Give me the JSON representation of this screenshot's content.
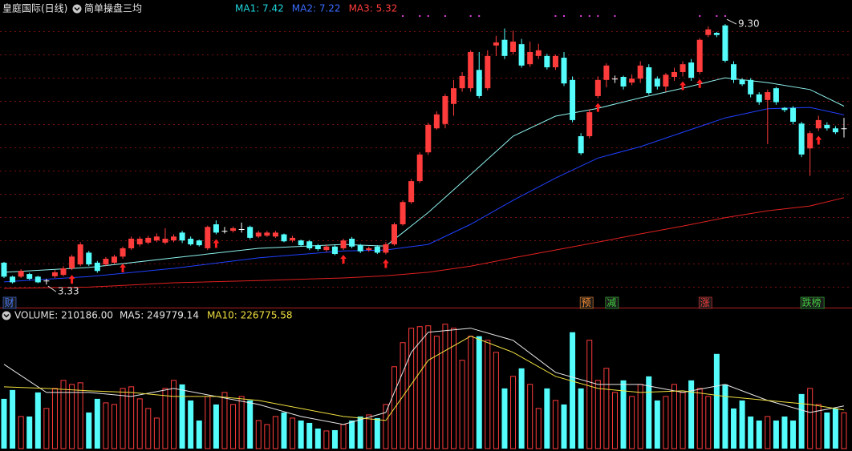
{
  "chart_data": [
    {
      "type": "candlestick",
      "title": "皇庭国际(日线)",
      "subtitle": "简单操盘三均",
      "open": [
        3.83,
        3.51,
        3.51,
        3.57,
        3.51,
        3.42,
        3.52,
        3.55,
        3.7,
        3.79,
        4.06,
        3.83,
        3.79,
        3.83,
        3.97,
        4.16,
        4.25,
        4.29,
        4.34,
        4.29,
        4.34,
        4.52,
        4.38,
        4.34,
        4.16,
        4.71,
        4.56,
        4.56,
        4.6,
        4.65,
        4.43,
        4.45,
        4.43,
        4.48,
        4.34,
        4.34,
        4.32,
        4.23,
        4.12,
        4.2,
        4.16,
        4.38,
        4.23,
        4.12,
        4.2,
        4.06,
        4.25,
        4.71,
        5.22,
        5.7,
        6.36,
        6.91,
        7.01,
        7.47,
        7.83,
        7.83,
        8.25,
        7.83,
        8.81,
        8.94,
        8.66,
        8.84,
        8.38,
        8.57,
        8.57,
        8.31,
        8.53,
        8.02,
        6.73,
        6.73,
        7.65,
        8.02,
        8.05,
        8.09,
        7.96,
        8.05,
        8.31,
        8.05,
        7.87,
        8.09,
        8.2,
        8.42,
        8.2,
        9.05,
        9.1,
        9.27,
        8.38,
        8.02,
        8.02,
        7.69,
        7.56,
        7.83,
        7.38,
        7.38,
        7.02,
        6.45,
        6.91,
        6.99,
        6.91,
        6.91
      ],
      "high": [
        3.85,
        3.53,
        3.68,
        3.6,
        3.53,
        3.46,
        3.66,
        3.75,
        4.01,
        4.3,
        4.1,
        3.87,
        3.96,
        4.01,
        4.2,
        4.43,
        4.43,
        4.45,
        4.5,
        4.62,
        4.48,
        4.56,
        4.43,
        4.36,
        4.68,
        4.8,
        4.65,
        4.66,
        4.75,
        4.68,
        4.56,
        4.56,
        4.56,
        4.5,
        4.45,
        4.36,
        4.35,
        4.26,
        4.25,
        4.25,
        4.38,
        4.42,
        4.26,
        4.2,
        4.23,
        4.3,
        4.75,
        5.26,
        5.75,
        6.36,
        7.04,
        7.3,
        7.7,
        8.02,
        8.2,
        8.7,
        8.66,
        8.7,
        9.03,
        9.2,
        9.15,
        8.96,
        8.9,
        8.85,
        8.62,
        8.6,
        8.66,
        8.1,
        6.8,
        7.35,
        8.1,
        8.4,
        8.12,
        8.12,
        8.15,
        8.45,
        8.38,
        8.1,
        8.18,
        8.3,
        8.45,
        8.5,
        8.98,
        9.25,
        9.12,
        9.3,
        8.45,
        8.06,
        8.06,
        7.74,
        7.8,
        7.86,
        7.4,
        7.42,
        7.06,
        6.85,
        7.2,
        7.05,
        6.96,
        7.15
      ],
      "low": [
        3.48,
        3.35,
        3.48,
        3.43,
        3.36,
        3.33,
        3.48,
        3.52,
        3.66,
        3.75,
        3.75,
        3.6,
        3.75,
        3.8,
        3.92,
        4.12,
        4.2,
        4.25,
        4.3,
        4.25,
        4.3,
        4.28,
        4.22,
        4.2,
        4.12,
        4.48,
        4.5,
        4.52,
        4.52,
        4.36,
        4.4,
        4.42,
        4.4,
        4.3,
        4.3,
        4.2,
        4.12,
        4.1,
        4.08,
        4.0,
        4.12,
        4.16,
        4.05,
        4.08,
        4.03,
        4.02,
        4.22,
        4.68,
        5.18,
        5.66,
        6.3,
        6.88,
        6.91,
        7.2,
        7.75,
        7.75,
        7.6,
        7.78,
        8.57,
        8.5,
        8.6,
        8.3,
        8.32,
        8.5,
        8.26,
        8.25,
        7.88,
        7.05,
        6.3,
        6.68,
        7.6,
        7.85,
        7.95,
        7.8,
        7.9,
        7.95,
        7.68,
        7.8,
        7.75,
        8.0,
        8.1,
        8.0,
        8.15,
        9.0,
        9.0,
        8.42,
        7.95,
        7.88,
        7.62,
        7.45,
        6.55,
        7.45,
        7.28,
        7.0,
        6.25,
        5.82,
        6.85,
        6.86,
        6.78,
        6.7
      ],
      "close": [
        3.51,
        3.38,
        3.64,
        3.46,
        3.38,
        3.42,
        3.61,
        3.7,
        3.97,
        4.25,
        3.79,
        3.64,
        3.92,
        3.97,
        4.16,
        4.38,
        4.38,
        4.4,
        4.43,
        4.38,
        4.43,
        4.34,
        4.25,
        4.23,
        4.65,
        4.52,
        4.56,
        4.62,
        4.6,
        4.4,
        4.52,
        4.52,
        4.52,
        4.32,
        4.4,
        4.23,
        4.16,
        4.14,
        4.2,
        4.03,
        4.34,
        4.2,
        4.09,
        4.16,
        4.06,
        4.25,
        4.71,
        5.22,
        5.7,
        6.31,
        6.99,
        7.23,
        7.65,
        7.83,
        8.11,
        8.66,
        7.65,
        8.57,
        8.88,
        8.57,
        8.9,
        8.35,
        8.66,
        8.7,
        8.31,
        8.57,
        7.94,
        7.1,
        6.34,
        7.28,
        8.02,
        8.35,
        8.05,
        7.87,
        8.05,
        8.35,
        7.72,
        7.87,
        8.14,
        8.2,
        8.38,
        8.07,
        8.94,
        9.18,
        9.05,
        8.46,
        8.02,
        7.92,
        7.69,
        7.51,
        7.74,
        7.51,
        7.33,
        7.06,
        6.31,
        6.8,
        7.1,
        6.91,
        6.82,
        6.91
      ],
      "up_color": "#ff3c3c",
      "down_color": "#54fcfc",
      "flat_color": "#ffffff",
      "ylim": [
        2.8,
        10
      ],
      "max_label": {
        "value": 9.3,
        "label": "9.30"
      },
      "min_label": {
        "value": 3.33,
        "label": "3.33"
      },
      "series": [
        {
          "name": "MA1: 7.42",
          "color": "#8ef2ee",
          "label_color": "#20d8e0",
          "x": [
            0,
            10,
            20,
            30,
            40,
            45,
            50,
            55,
            60,
            65,
            70,
            75,
            80,
            85,
            90,
            95,
            99
          ],
          "values": [
            3.61,
            3.72,
            3.94,
            4.16,
            4.25,
            4.21,
            4.98,
            5.85,
            6.73,
            7.19,
            7.37,
            7.61,
            7.83,
            8.07,
            7.96,
            7.8,
            7.42
          ]
        },
        {
          "name": "MA2: 7.22",
          "color": "#2040ff",
          "label_color": "#3a6cff",
          "x": [
            0,
            10,
            20,
            30,
            40,
            45,
            50,
            55,
            60,
            65,
            70,
            75,
            80,
            85,
            90,
            95,
            99
          ],
          "values": [
            3.39,
            3.51,
            3.7,
            3.94,
            4.1,
            4.12,
            4.25,
            4.71,
            5.26,
            5.77,
            6.23,
            6.49,
            6.82,
            7.15,
            7.36,
            7.39,
            7.22
          ]
        },
        {
          "name": "MA3: 5.32",
          "color": "#e02020",
          "label_color": "#ff3c3c",
          "x": [
            0,
            10,
            20,
            30,
            40,
            45,
            50,
            55,
            60,
            65,
            70,
            75,
            80,
            85,
            90,
            95,
            99
          ],
          "values": [
            3.24,
            3.27,
            3.37,
            3.42,
            3.48,
            3.53,
            3.61,
            3.75,
            3.94,
            4.12,
            4.3,
            4.49,
            4.67,
            4.86,
            5.02,
            5.13,
            5.32
          ]
        }
      ],
      "up_arrows": [
        8,
        14,
        25,
        40,
        45,
        70,
        80,
        82,
        96
      ],
      "top_dots": [
        47,
        49,
        50,
        52,
        55,
        56,
        65,
        66,
        68,
        69,
        70,
        72,
        82,
        84,
        85
      ],
      "tags": [
        {
          "text": "财",
          "index": 0,
          "color": "#4a7cff"
        },
        {
          "text": "预",
          "index": 68,
          "color": "#ff9030"
        },
        {
          "text": "减",
          "index": 71,
          "color": "#40d040"
        },
        {
          "text": "涨",
          "index": 82,
          "color": "#ff3c3c"
        },
        {
          "text": "跌榜",
          "index": 94,
          "color": "#40d040"
        }
      ]
    },
    {
      "type": "volume",
      "title": "VOLUME: 210186.00",
      "title_color": "#e0e0e0",
      "values": [
        291400,
        343100,
        188000,
        188000,
        329000,
        235000,
        352500,
        399500,
        376000,
        385400,
        211500,
        291400,
        267900,
        258500,
        352500,
        361900,
        291400,
        235000,
        178600,
        352500,
        399500,
        376000,
        282000,
        164500,
        305500,
        258500,
        329000,
        258500,
        305500,
        282000,
        164500,
        141000,
        188000,
        211500,
        178600,
        164500,
        150400,
        117500,
        103400,
        108100,
        141000,
        164500,
        188000,
        197400,
        178600,
        258500,
        479400,
        620400,
        705000,
        714400,
        719100,
        658000,
        728500,
        705000,
        517000,
        658000,
        658000,
        634500,
        564000,
        352500,
        423000,
        470000,
        376000,
        235000,
        352500,
        282000,
        258500,
        681500,
        352500,
        634500,
        399500,
        470000,
        329000,
        399500,
        305500,
        376000,
        423000,
        282000,
        305500,
        376000,
        329000,
        399500,
        352500,
        305500,
        554600,
        376000,
        235000,
        282000,
        188000,
        164500,
        188000,
        164500,
        188000,
        164500,
        319600,
        352500,
        258500,
        211500,
        235000,
        210186
      ],
      "ylim": [
        0,
        760000
      ],
      "series": [
        {
          "name": "MA5: 249779.14",
          "color": "#e8e8e8",
          "x": [
            0,
            5,
            10,
            15,
            20,
            25,
            30,
            35,
            40,
            45,
            48,
            50,
            55,
            60,
            65,
            70,
            75,
            80,
            85,
            90,
            95,
            99
          ],
          "values": [
            493500,
            329000,
            329000,
            305500,
            352500,
            305500,
            258500,
            188000,
            141000,
            211500,
            564000,
            681500,
            705000,
            634500,
            446500,
            376000,
            376000,
            329000,
            376000,
            282000,
            211500,
            249779.14
          ]
        },
        {
          "name": "MA10: 226775.58",
          "color": "#f0e040",
          "x": [
            0,
            5,
            10,
            15,
            20,
            25,
            30,
            35,
            40,
            45,
            50,
            55,
            60,
            65,
            70,
            75,
            80,
            85,
            90,
            95,
            99
          ],
          "values": [
            361900,
            352500,
            338400,
            329000,
            305500,
            305500,
            282000,
            235000,
            188000,
            164500,
            517000,
            658000,
            564000,
            423000,
            352500,
            329000,
            338400,
            305500,
            282000,
            258500,
            226775.58
          ]
        }
      ]
    }
  ]
}
